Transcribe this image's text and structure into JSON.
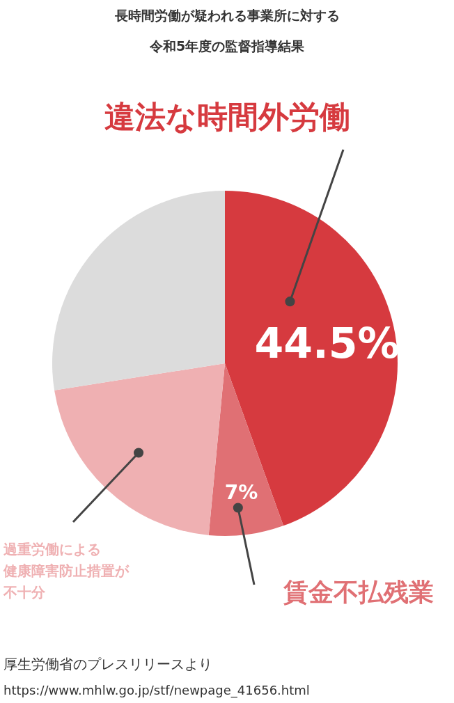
{
  "chart_data": {
    "type": "pie",
    "title": "長時間労働が疑われる事業所に対する令和5年度の監督指導結果",
    "categories": [
      "違法な時間外労働",
      "賃金不払残業",
      "過重労働による健康障害防止措置が不十分",
      null
    ],
    "values": [
      44.5,
      7,
      21,
      27.5
    ],
    "colors": [
      "#d63a3f",
      "#e07074",
      "#efb0b2",
      "#dcdcdc"
    ],
    "value_labels": [
      "44.5%",
      "7%",
      null,
      null
    ],
    "annotations": [
      "厚生労働省のプレスリリースより",
      "https://www.mhlw.go.jp/stf/newpage_41656.html"
    ]
  }
}
